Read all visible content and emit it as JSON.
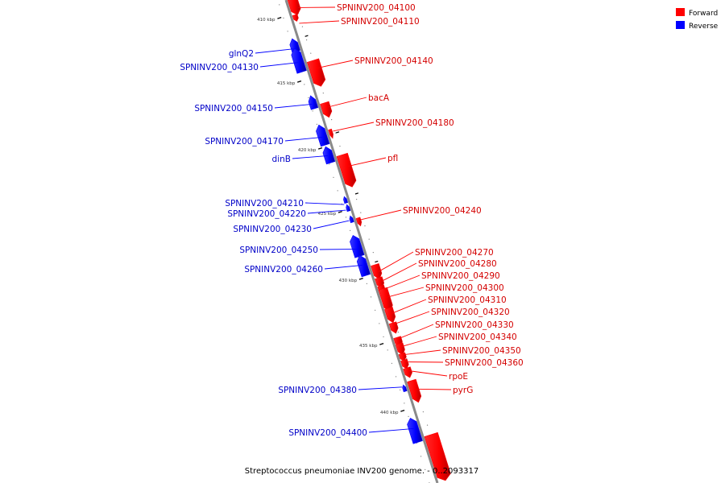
{
  "colors": {
    "forward": "#ff0000",
    "reverse": "#0000ff",
    "backbone": "#888888"
  },
  "legend": {
    "forward_label": "Forward",
    "reverse_label": "Reverse"
  },
  "caption": "Streptococcus pneumoniae INV200 genome. - 0..2093317",
  "ticks": [
    {
      "kbp": 410,
      "label": "410 kbp"
    },
    {
      "kbp": 415,
      "label": "415 kbp"
    },
    {
      "kbp": 420,
      "label": "420 kbp"
    },
    {
      "kbp": 425,
      "label": "425 kbp"
    },
    {
      "kbp": 430,
      "label": "430 kbp"
    },
    {
      "kbp": 435,
      "label": "435 kbp"
    },
    {
      "kbp": 440,
      "label": "440 kbp"
    }
  ],
  "genes": [
    {
      "name": "SPNINV200_04100",
      "strand": "forward"
    },
    {
      "name": "SPNINV200_04110",
      "strand": "forward"
    },
    {
      "name": "glnQ2",
      "strand": "reverse"
    },
    {
      "name": "SPNINV200_04130",
      "strand": "reverse"
    },
    {
      "name": "SPNINV200_04140",
      "strand": "forward"
    },
    {
      "name": "SPNINV200_04150",
      "strand": "reverse"
    },
    {
      "name": "bacA",
      "strand": "forward"
    },
    {
      "name": "SPNINV200_04180",
      "strand": "forward"
    },
    {
      "name": "SPNINV200_04170",
      "strand": "reverse"
    },
    {
      "name": "dinB",
      "strand": "reverse"
    },
    {
      "name": "pfl",
      "strand": "forward"
    },
    {
      "name": "SPNINV200_04210",
      "strand": "reverse"
    },
    {
      "name": "SPNINV200_04220",
      "strand": "reverse"
    },
    {
      "name": "SPNINV200_04230",
      "strand": "reverse"
    },
    {
      "name": "SPNINV200_04240",
      "strand": "forward"
    },
    {
      "name": "SPNINV200_04250",
      "strand": "reverse"
    },
    {
      "name": "SPNINV200_04260",
      "strand": "reverse"
    },
    {
      "name": "SPNINV200_04270",
      "strand": "forward"
    },
    {
      "name": "SPNINV200_04280",
      "strand": "forward"
    },
    {
      "name": "SPNINV200_04290",
      "strand": "forward"
    },
    {
      "name": "SPNINV200_04300",
      "strand": "forward"
    },
    {
      "name": "SPNINV200_04310",
      "strand": "forward"
    },
    {
      "name": "SPNINV200_04320",
      "strand": "forward"
    },
    {
      "name": "SPNINV200_04330",
      "strand": "forward"
    },
    {
      "name": "SPNINV200_04340",
      "strand": "forward"
    },
    {
      "name": "SPNINV200_04350",
      "strand": "forward"
    },
    {
      "name": "SPNINV200_04360",
      "strand": "forward"
    },
    {
      "name": "rpoE",
      "strand": "forward"
    },
    {
      "name": "SPNINV200_04380",
      "strand": "reverse"
    },
    {
      "name": "pyrG",
      "strand": "forward"
    },
    {
      "name": "SPNINV200_04400",
      "strand": "reverse"
    },
    {
      "name": "",
      "strand": "forward"
    }
  ]
}
